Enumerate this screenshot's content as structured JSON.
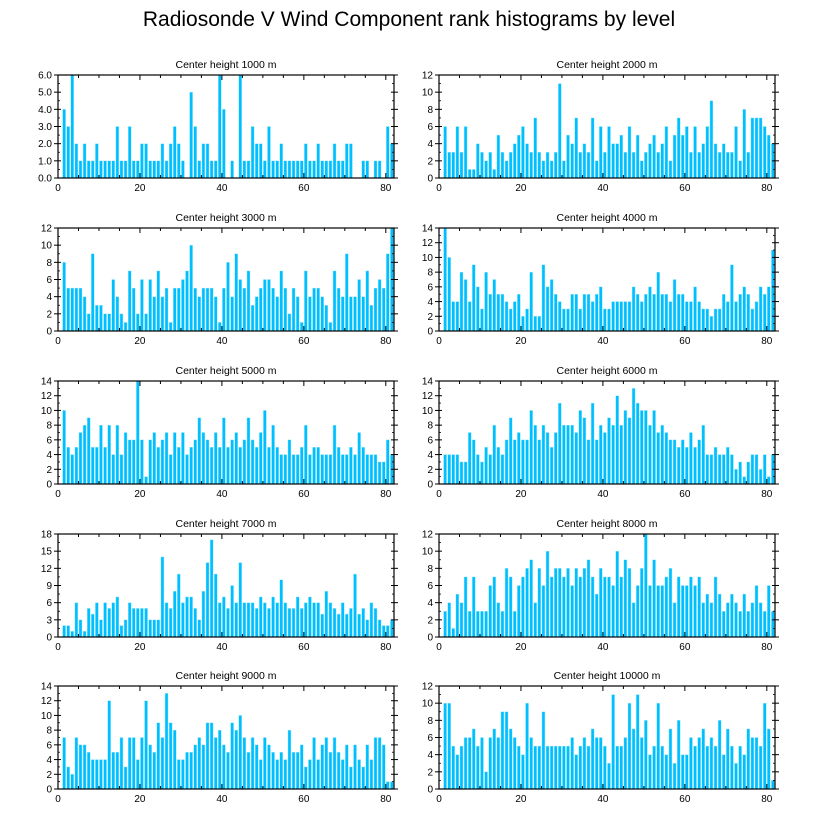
{
  "title": "Radiosonde V Wind Component rank histograms by level",
  "chart_data": [
    {
      "type": "bar",
      "title": "Center height 1000 m",
      "xlim": [
        0,
        82
      ],
      "xticks": [
        0,
        20,
        40,
        60,
        80
      ],
      "ylim": [
        0,
        6
      ],
      "yticks": [
        0,
        1,
        2,
        3,
        4,
        5,
        6
      ],
      "ytick_labels": [
        "0.0",
        "1.0",
        "2.0",
        "3.0",
        "4.0",
        "5.0",
        "6.0"
      ],
      "yaxis_side": "left",
      "values": [
        0,
        4,
        3,
        6,
        2,
        1,
        2,
        1,
        1,
        2,
        1,
        1,
        1,
        1,
        3,
        1,
        1,
        3,
        1,
        1,
        2,
        2,
        1,
        1,
        1,
        2,
        1,
        2,
        3,
        2,
        1,
        0,
        5,
        3,
        1,
        2,
        2,
        1,
        1,
        6,
        4,
        0,
        1,
        0,
        6,
        1,
        1,
        3,
        2,
        2,
        1,
        3,
        1,
        1,
        2,
        1,
        1,
        1,
        1,
        1,
        2,
        1,
        1,
        2,
        1,
        1,
        1,
        2,
        1,
        1,
        2,
        2,
        0,
        0,
        1,
        1,
        0,
        1,
        1,
        0,
        3,
        2
      ]
    },
    {
      "type": "bar",
      "title": "Center height 2000 m",
      "xlim": [
        0,
        82
      ],
      "xticks": [
        0,
        20,
        40,
        60,
        80
      ],
      "ylim": [
        0,
        12
      ],
      "yticks": [
        0,
        2,
        4,
        6,
        8,
        10,
        12
      ],
      "ytick_labels": [
        "0",
        "2",
        "4",
        "6",
        "8",
        "10",
        "12"
      ],
      "yaxis_side": "right",
      "values": [
        0,
        6,
        3,
        3,
        6,
        3,
        6,
        1,
        1,
        4,
        3,
        2,
        3,
        1,
        5,
        3,
        2,
        3,
        4,
        5,
        6,
        4,
        3,
        7,
        3,
        2,
        3,
        2,
        3,
        11,
        2,
        5,
        4,
        7,
        3,
        4,
        3,
        7,
        2,
        6,
        3,
        6,
        4,
        4,
        5,
        3,
        6,
        3,
        5,
        2,
        3,
        4,
        5,
        3,
        4,
        6,
        2,
        5,
        7,
        5,
        6,
        3,
        6,
        3,
        4,
        6,
        9,
        4,
        3,
        4,
        3,
        3,
        6,
        2,
        8,
        3,
        7,
        7,
        7,
        6,
        5,
        4
      ]
    },
    {
      "type": "bar",
      "title": "Center height 3000 m",
      "xlim": [
        0,
        82
      ],
      "xticks": [
        0,
        20,
        40,
        60,
        80
      ],
      "ylim": [
        0,
        12
      ],
      "yticks": [
        0,
        2,
        4,
        6,
        8,
        10,
        12
      ],
      "ytick_labels": [
        "0",
        "2",
        "4",
        "6",
        "8",
        "10",
        "12"
      ],
      "yaxis_side": "left",
      "values": [
        0,
        8,
        5,
        5,
        5,
        5,
        4,
        2,
        9,
        3,
        3,
        2,
        2,
        6,
        4,
        2,
        1,
        7,
        5,
        2,
        6,
        2,
        6,
        4,
        7,
        4,
        5,
        1,
        5,
        5,
        6,
        7,
        10,
        5,
        4,
        5,
        5,
        5,
        4,
        1,
        5,
        8,
        4,
        9,
        6,
        5,
        7,
        3,
        4,
        5,
        6,
        6,
        5,
        4,
        7,
        5,
        2,
        5,
        4,
        1,
        7,
        4,
        5,
        5,
        4,
        3,
        1,
        7,
        5,
        4,
        9,
        4,
        4,
        6,
        4,
        7,
        3,
        5,
        6,
        5,
        9,
        12
      ]
    },
    {
      "type": "bar",
      "title": "Center height 4000 m",
      "xlim": [
        0,
        82
      ],
      "xticks": [
        0,
        20,
        40,
        60,
        80
      ],
      "ylim": [
        0,
        14
      ],
      "yticks": [
        0,
        2,
        4,
        6,
        8,
        10,
        12,
        14
      ],
      "ytick_labels": [
        "0",
        "2",
        "4",
        "6",
        "8",
        "10",
        "12",
        "14"
      ],
      "yaxis_side": "right",
      "values": [
        0,
        14,
        10,
        4,
        4,
        8,
        7,
        4,
        9,
        6,
        3,
        8,
        5,
        7,
        5,
        5,
        4,
        3,
        4,
        5,
        2,
        3,
        8,
        2,
        2,
        9,
        6,
        7,
        5,
        4,
        3,
        3,
        5,
        5,
        3,
        5,
        5,
        4,
        5,
        6,
        3,
        3,
        4,
        4,
        4,
        4,
        4,
        6,
        5,
        4,
        5,
        6,
        5,
        8,
        5,
        5,
        4,
        7,
        5,
        5,
        4,
        4,
        6,
        4,
        3,
        3,
        2,
        3,
        3,
        5,
        4,
        9,
        4,
        5,
        6,
        5,
        3,
        4,
        6,
        5,
        6,
        11
      ]
    },
    {
      "type": "bar",
      "title": "Center height 5000 m",
      "xlim": [
        0,
        82
      ],
      "xticks": [
        0,
        20,
        40,
        60,
        80
      ],
      "ylim": [
        0,
        14
      ],
      "yticks": [
        0,
        2,
        4,
        6,
        8,
        10,
        12,
        14
      ],
      "ytick_labels": [
        "0",
        "2",
        "4",
        "6",
        "8",
        "10",
        "12",
        "14"
      ],
      "yaxis_side": "left",
      "values": [
        0,
        10,
        5,
        4,
        5,
        7,
        8,
        9,
        5,
        5,
        8,
        5,
        8,
        4,
        8,
        4,
        7,
        6,
        6,
        14,
        6,
        1,
        6,
        7,
        5,
        6,
        7,
        4,
        7,
        5,
        7,
        4,
        5,
        6,
        9,
        7,
        6,
        5,
        7,
        5,
        9,
        5,
        6,
        7,
        5,
        6,
        9,
        6,
        5,
        7,
        10,
        5,
        8,
        5,
        4,
        4,
        6,
        4,
        4,
        5,
        8,
        4,
        5,
        5,
        4,
        4,
        4,
        8,
        5,
        4,
        4,
        5,
        4,
        7,
        5,
        4,
        4,
        4,
        3,
        3,
        6,
        4
      ]
    },
    {
      "type": "bar",
      "title": "Center height 6000 m",
      "xlim": [
        0,
        82
      ],
      "xticks": [
        0,
        20,
        40,
        60,
        80
      ],
      "ylim": [
        0,
        14
      ],
      "yticks": [
        0,
        2,
        4,
        6,
        8,
        10,
        12,
        14
      ],
      "ytick_labels": [
        "0",
        "2",
        "4",
        "6",
        "8",
        "10",
        "12",
        "14"
      ],
      "yaxis_side": "right",
      "values": [
        0,
        4,
        4,
        4,
        4,
        3,
        3,
        7,
        6,
        4,
        3,
        5,
        4,
        8,
        5,
        4,
        6,
        9,
        6,
        7,
        6,
        6,
        10,
        8,
        6,
        8,
        7,
        5,
        7,
        11,
        8,
        8,
        8,
        7,
        10,
        9,
        6,
        11,
        6,
        8,
        7,
        9,
        8,
        12,
        8,
        10,
        9,
        13,
        11,
        10,
        10,
        8,
        10,
        7,
        8,
        7,
        6,
        6,
        5,
        6,
        5,
        7,
        5,
        6,
        8,
        4,
        4,
        5,
        4,
        4,
        5,
        4,
        2,
        3,
        1,
        3,
        4,
        4,
        2,
        4,
        1,
        4
      ]
    },
    {
      "type": "bar",
      "title": "Center height 7000 m",
      "xlim": [
        0,
        82
      ],
      "xticks": [
        0,
        20,
        40,
        60,
        80
      ],
      "ylim": [
        0,
        18
      ],
      "yticks": [
        0,
        3,
        6,
        9,
        12,
        15,
        18
      ],
      "ytick_labels": [
        "0",
        "3",
        "6",
        "9",
        "12",
        "15",
        "18"
      ],
      "yaxis_side": "left",
      "values": [
        0,
        2,
        2,
        1,
        6,
        3,
        1,
        5,
        4,
        6,
        3,
        6,
        5,
        6,
        7,
        2,
        3,
        6,
        5,
        5,
        5,
        5,
        3,
        3,
        3,
        14,
        6,
        5,
        8,
        11,
        6,
        7,
        7,
        5,
        3,
        8,
        13,
        17,
        11,
        6,
        7,
        5,
        9,
        6,
        13,
        6,
        6,
        6,
        5,
        7,
        6,
        5,
        7,
        6,
        10,
        6,
        5,
        5,
        7,
        5,
        6,
        7,
        6,
        6,
        4,
        8,
        6,
        5,
        4,
        6,
        4,
        5,
        11,
        4,
        5,
        3,
        6,
        5,
        3,
        2,
        2,
        3
      ]
    },
    {
      "type": "bar",
      "title": "Center height 8000 m",
      "xlim": [
        0,
        82
      ],
      "xticks": [
        0,
        20,
        40,
        60,
        80
      ],
      "ylim": [
        0,
        12
      ],
      "yticks": [
        0,
        2,
        4,
        6,
        8,
        10,
        12
      ],
      "ytick_labels": [
        "0",
        "2",
        "4",
        "6",
        "8",
        "10",
        "12"
      ],
      "yaxis_side": "right",
      "values": [
        0,
        3,
        4,
        1,
        5,
        4,
        7,
        3,
        7,
        3,
        3,
        3,
        6,
        7,
        4,
        3,
        8,
        7,
        3,
        6,
        7,
        8,
        9,
        4,
        8,
        6,
        10,
        7,
        8,
        8,
        7,
        8,
        6,
        8,
        7,
        8,
        9,
        7,
        5,
        8,
        7,
        7,
        6,
        10,
        7,
        9,
        8,
        4,
        6,
        8,
        12,
        6,
        9,
        6,
        6,
        7,
        8,
        4,
        7,
        6,
        6,
        7,
        6,
        7,
        4,
        5,
        4,
        7,
        5,
        3,
        4,
        5,
        4,
        3,
        5,
        3,
        4,
        6,
        4,
        3,
        6,
        3
      ]
    },
    {
      "type": "bar",
      "title": "Center height 9000 m",
      "xlim": [
        0,
        82
      ],
      "xticks": [
        0,
        20,
        40,
        60,
        80
      ],
      "ylim": [
        0,
        14
      ],
      "yticks": [
        0,
        2,
        4,
        6,
        8,
        10,
        12,
        14
      ],
      "ytick_labels": [
        "0",
        "2",
        "4",
        "6",
        "8",
        "10",
        "12",
        "14"
      ],
      "yaxis_side": "left",
      "values": [
        0,
        7,
        3,
        2,
        7,
        6,
        6,
        5,
        4,
        4,
        4,
        4,
        12,
        5,
        5,
        7,
        3,
        7,
        7,
        4,
        7,
        12,
        6,
        5,
        9,
        7,
        13,
        9,
        8,
        4,
        4,
        5,
        5,
        6,
        7,
        6,
        9,
        9,
        7,
        8,
        6,
        5,
        9,
        8,
        10,
        7,
        5,
        7,
        6,
        4,
        7,
        6,
        5,
        4,
        5,
        4,
        8,
        5,
        5,
        6,
        3,
        4,
        7,
        4,
        6,
        7,
        5,
        7,
        5,
        4,
        6,
        3,
        6,
        4,
        3,
        6,
        4,
        7,
        7,
        6,
        1,
        1
      ]
    },
    {
      "type": "bar",
      "title": "Center height 10000 m",
      "xlim": [
        0,
        82
      ],
      "xticks": [
        0,
        20,
        40,
        60,
        80
      ],
      "ylim": [
        0,
        12
      ],
      "yticks": [
        0,
        2,
        4,
        6,
        8,
        10,
        12
      ],
      "ytick_labels": [
        "0",
        "2",
        "4",
        "6",
        "8",
        "10",
        "12"
      ],
      "yaxis_side": "right",
      "values": [
        0,
        10,
        10,
        5,
        4,
        5,
        6,
        6,
        7,
        5,
        6,
        2,
        6,
        7,
        6,
        9,
        9,
        7,
        6,
        5,
        4,
        10,
        6,
        5,
        5,
        9,
        5,
        5,
        5,
        5,
        5,
        5,
        6,
        4,
        5,
        6,
        5,
        7,
        6,
        6,
        5,
        3,
        11,
        5,
        5,
        6,
        10,
        7,
        11,
        6,
        8,
        4,
        5,
        10,
        5,
        4,
        7,
        3,
        8,
        4,
        4,
        6,
        5,
        6,
        7,
        5,
        6,
        5,
        8,
        4,
        7,
        5,
        3,
        5,
        4,
        7,
        6,
        6,
        5,
        10,
        7,
        1
      ]
    }
  ]
}
